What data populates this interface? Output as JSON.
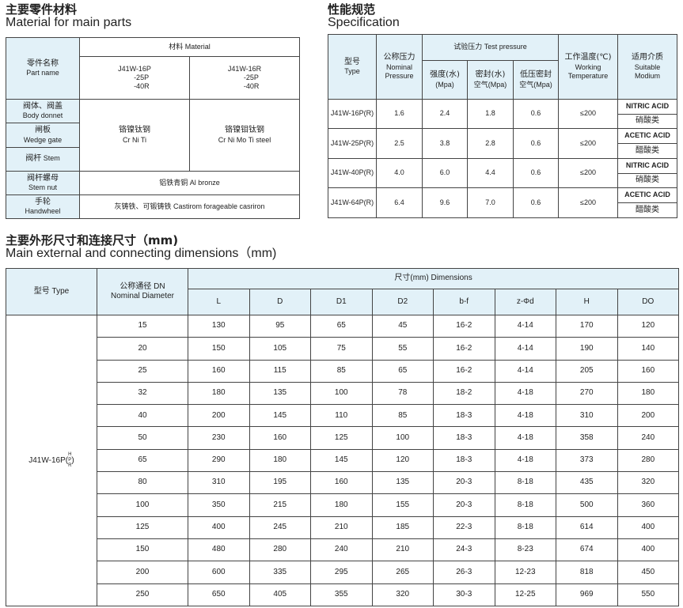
{
  "materials": {
    "title_zh": "主要零件材料",
    "title_en": "Material for main parts",
    "part_name_zh": "零件名称",
    "part_name_en": "Part name",
    "material_header": "材料 Material",
    "version_p": [
      "J41W-16P",
      "-25P",
      "-40R"
    ],
    "version_r": [
      "J41W-16R",
      "-25P",
      "-40R"
    ],
    "parts": [
      {
        "zh": "阀体、阀盖",
        "en": "Body donnet"
      },
      {
        "zh": "闸板",
        "en": "Wedge gate"
      },
      {
        "zh": "阀杆",
        "en": "Stem"
      },
      {
        "zh": "阀杆螺母",
        "en": "Stem nut"
      },
      {
        "zh": "手轮",
        "en": "Handwheel"
      }
    ],
    "crniti_zh": "铬镍钛钢",
    "crniti_en": "Cr Ni Ti",
    "crnimoti_zh": "铬镍钼钛钢",
    "crnimoti_en": "Cr Ni Mo Ti steel",
    "stem_nut_material": "铝铁青铜 Al bronze",
    "handwheel_material": "灰铸铁、可锻铸铁 Castirom forageable casriron"
  },
  "specification": {
    "title_zh": "性能规范",
    "title_en": "Specification",
    "headers": {
      "type_zh": "型号",
      "type_en": "Type",
      "nominal_zh": "公称压力",
      "nominal_en1": "Nominal",
      "nominal_en2": "Pressure",
      "test": "试验压力 Test pressure",
      "strength_zh": "强度(水)",
      "strength_en": "(Mpa)",
      "seal_zh": "密封(水)",
      "seal_en": "空气(Mpa)",
      "low_zh": "低压密封",
      "low_en": "空气(Mpa)",
      "temp_zh": "工作温度(℃)",
      "temp_en1": "Working",
      "temp_en2": "Temperature",
      "medium_zh": "适用介质",
      "medium_en1": "Suitable",
      "medium_en2": "Modium"
    },
    "rows": [
      {
        "type": "J41W-16P(R)",
        "nominal": "1.6",
        "strength": "2.4",
        "seal": "1.8",
        "low": "0.6",
        "temp": "≤200",
        "medium_en": "NITRIC ACID",
        "medium_zh": "硝酸类"
      },
      {
        "type": "J41W-25P(R)",
        "nominal": "2.5",
        "strength": "3.8",
        "seal": "2.8",
        "low": "0.6",
        "temp": "≤200",
        "medium_en": "ACETIC ACID",
        "medium_zh": "醋酸类"
      },
      {
        "type": "J41W-40P(R)",
        "nominal": "4.0",
        "strength": "6.0",
        "seal": "4.4",
        "low": "0.6",
        "temp": "≤200",
        "medium_en": "NITRIC ACID",
        "medium_zh": "硝酸类"
      },
      {
        "type": "J41W-64P(R)",
        "nominal": "6.4",
        "strength": "9.6",
        "seal": "7.0",
        "low": "0.6",
        "temp": "≤200",
        "medium_en": "ACETIC ACID",
        "medium_zh": "醋酸类"
      }
    ]
  },
  "dimensions": {
    "title_zh": "主要外形尺寸和连接尺寸（mm)",
    "title_en": "Main external and connecting dimensions（mm)",
    "type_header": "型号 Type",
    "dn_header_zh": "公称通径 DN",
    "dn_header_en": "Nominal Diameter",
    "dims_header": "尺寸(mm) Dimensions",
    "columns": [
      "L",
      "D",
      "D1",
      "D2",
      "b-f",
      "z-Φd",
      "H",
      "DO"
    ],
    "model": "J41W-16P(",
    "model_sub": [
      "H",
      "P",
      "R"
    ],
    "model_close": ")",
    "rows": [
      [
        "15",
        "130",
        "95",
        "65",
        "45",
        "16-2",
        "4-14",
        "170",
        "120"
      ],
      [
        "20",
        "150",
        "105",
        "75",
        "55",
        "16-2",
        "4-14",
        "190",
        "140"
      ],
      [
        "25",
        "160",
        "115",
        "85",
        "65",
        "16-2",
        "4-14",
        "205",
        "160"
      ],
      [
        "32",
        "180",
        "135",
        "100",
        "78",
        "18-2",
        "4-18",
        "270",
        "180"
      ],
      [
        "40",
        "200",
        "145",
        "110",
        "85",
        "18-3",
        "4-18",
        "310",
        "200"
      ],
      [
        "50",
        "230",
        "160",
        "125",
        "100",
        "18-3",
        "4-18",
        "358",
        "240"
      ],
      [
        "65",
        "290",
        "180",
        "145",
        "120",
        "18-3",
        "4-18",
        "373",
        "280"
      ],
      [
        "80",
        "310",
        "195",
        "160",
        "135",
        "20-3",
        "8-18",
        "435",
        "320"
      ],
      [
        "100",
        "350",
        "215",
        "180",
        "155",
        "20-3",
        "8-18",
        "500",
        "360"
      ],
      [
        "125",
        "400",
        "245",
        "210",
        "185",
        "22-3",
        "8-18",
        "614",
        "400"
      ],
      [
        "150",
        "480",
        "280",
        "240",
        "210",
        "24-3",
        "8-23",
        "674",
        "400"
      ],
      [
        "200",
        "600",
        "335",
        "295",
        "265",
        "26-3",
        "12-23",
        "818",
        "450"
      ],
      [
        "250",
        "650",
        "405",
        "355",
        "320",
        "30-3",
        "12-25",
        "969",
        "550"
      ]
    ]
  },
  "colors": {
    "header_fill": "#e2f1f8",
    "border": "#444444"
  }
}
